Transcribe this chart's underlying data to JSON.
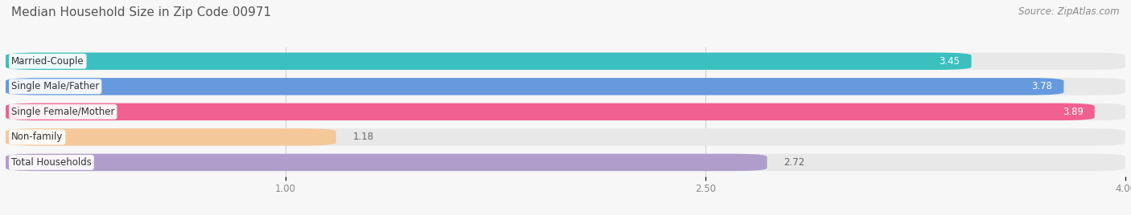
{
  "title": "Median Household Size in Zip Code 00971",
  "source": "Source: ZipAtlas.com",
  "categories": [
    "Married-Couple",
    "Single Male/Father",
    "Single Female/Mother",
    "Non-family",
    "Total Households"
  ],
  "values": [
    3.45,
    3.78,
    3.89,
    1.18,
    2.72
  ],
  "bar_colors": [
    "#3bbfbf",
    "#6699dd",
    "#f06090",
    "#f5c89a",
    "#b09dcc"
  ],
  "label_colors": [
    "white",
    "white",
    "white",
    "#666666",
    "#666666"
  ],
  "xmin": 0.0,
  "xmax": 4.0,
  "xticks": [
    1.0,
    2.5,
    4.0
  ],
  "title_fontsize": 11,
  "source_fontsize": 8.5,
  "bar_height": 0.68,
  "bg_color": "#f7f7f7",
  "bar_bg_color": "#e8e8e8",
  "value_label_inside": [
    true,
    true,
    true,
    false,
    false
  ]
}
